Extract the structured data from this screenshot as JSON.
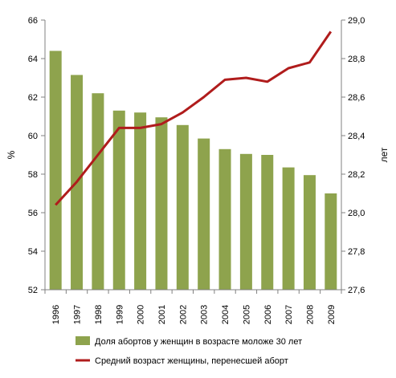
{
  "chart_data": {
    "type": "bar",
    "categories": [
      "1996",
      "1997",
      "1998",
      "1999",
      "2000",
      "2001",
      "2002",
      "2003",
      "2004",
      "2005",
      "2006",
      "2007",
      "2008",
      "2009"
    ],
    "series": [
      {
        "name": "Доля абортов у женщин в возрасте моложе 30 лет",
        "kind": "bar",
        "axis": "left",
        "color": "#8ea34d",
        "values": [
          64.4,
          63.15,
          62.2,
          61.3,
          61.2,
          60.95,
          60.55,
          59.85,
          59.3,
          59.05,
          59.0,
          58.35,
          57.95,
          57.0
        ]
      },
      {
        "name": "Средний возраст женщины, перенесшей аборт",
        "kind": "line",
        "axis": "right",
        "color": "#b01c1c",
        "values": [
          28.04,
          28.16,
          28.3,
          28.44,
          28.44,
          28.46,
          28.52,
          28.6,
          28.69,
          28.7,
          28.68,
          28.75,
          28.78,
          28.94
        ]
      }
    ],
    "ylabel": "%",
    "y2label": "лет",
    "ylim": [
      52,
      66
    ],
    "y2lim": [
      27.6,
      29.0
    ],
    "yticks": [
      "52",
      "54",
      "56",
      "58",
      "60",
      "62",
      "64",
      "66"
    ],
    "y2ticks": [
      "27,6",
      "27,8",
      "28,0",
      "28,2",
      "28,4",
      "28,6",
      "28,8",
      "29,0"
    ],
    "grid": false,
    "legend_position": "bottom"
  }
}
